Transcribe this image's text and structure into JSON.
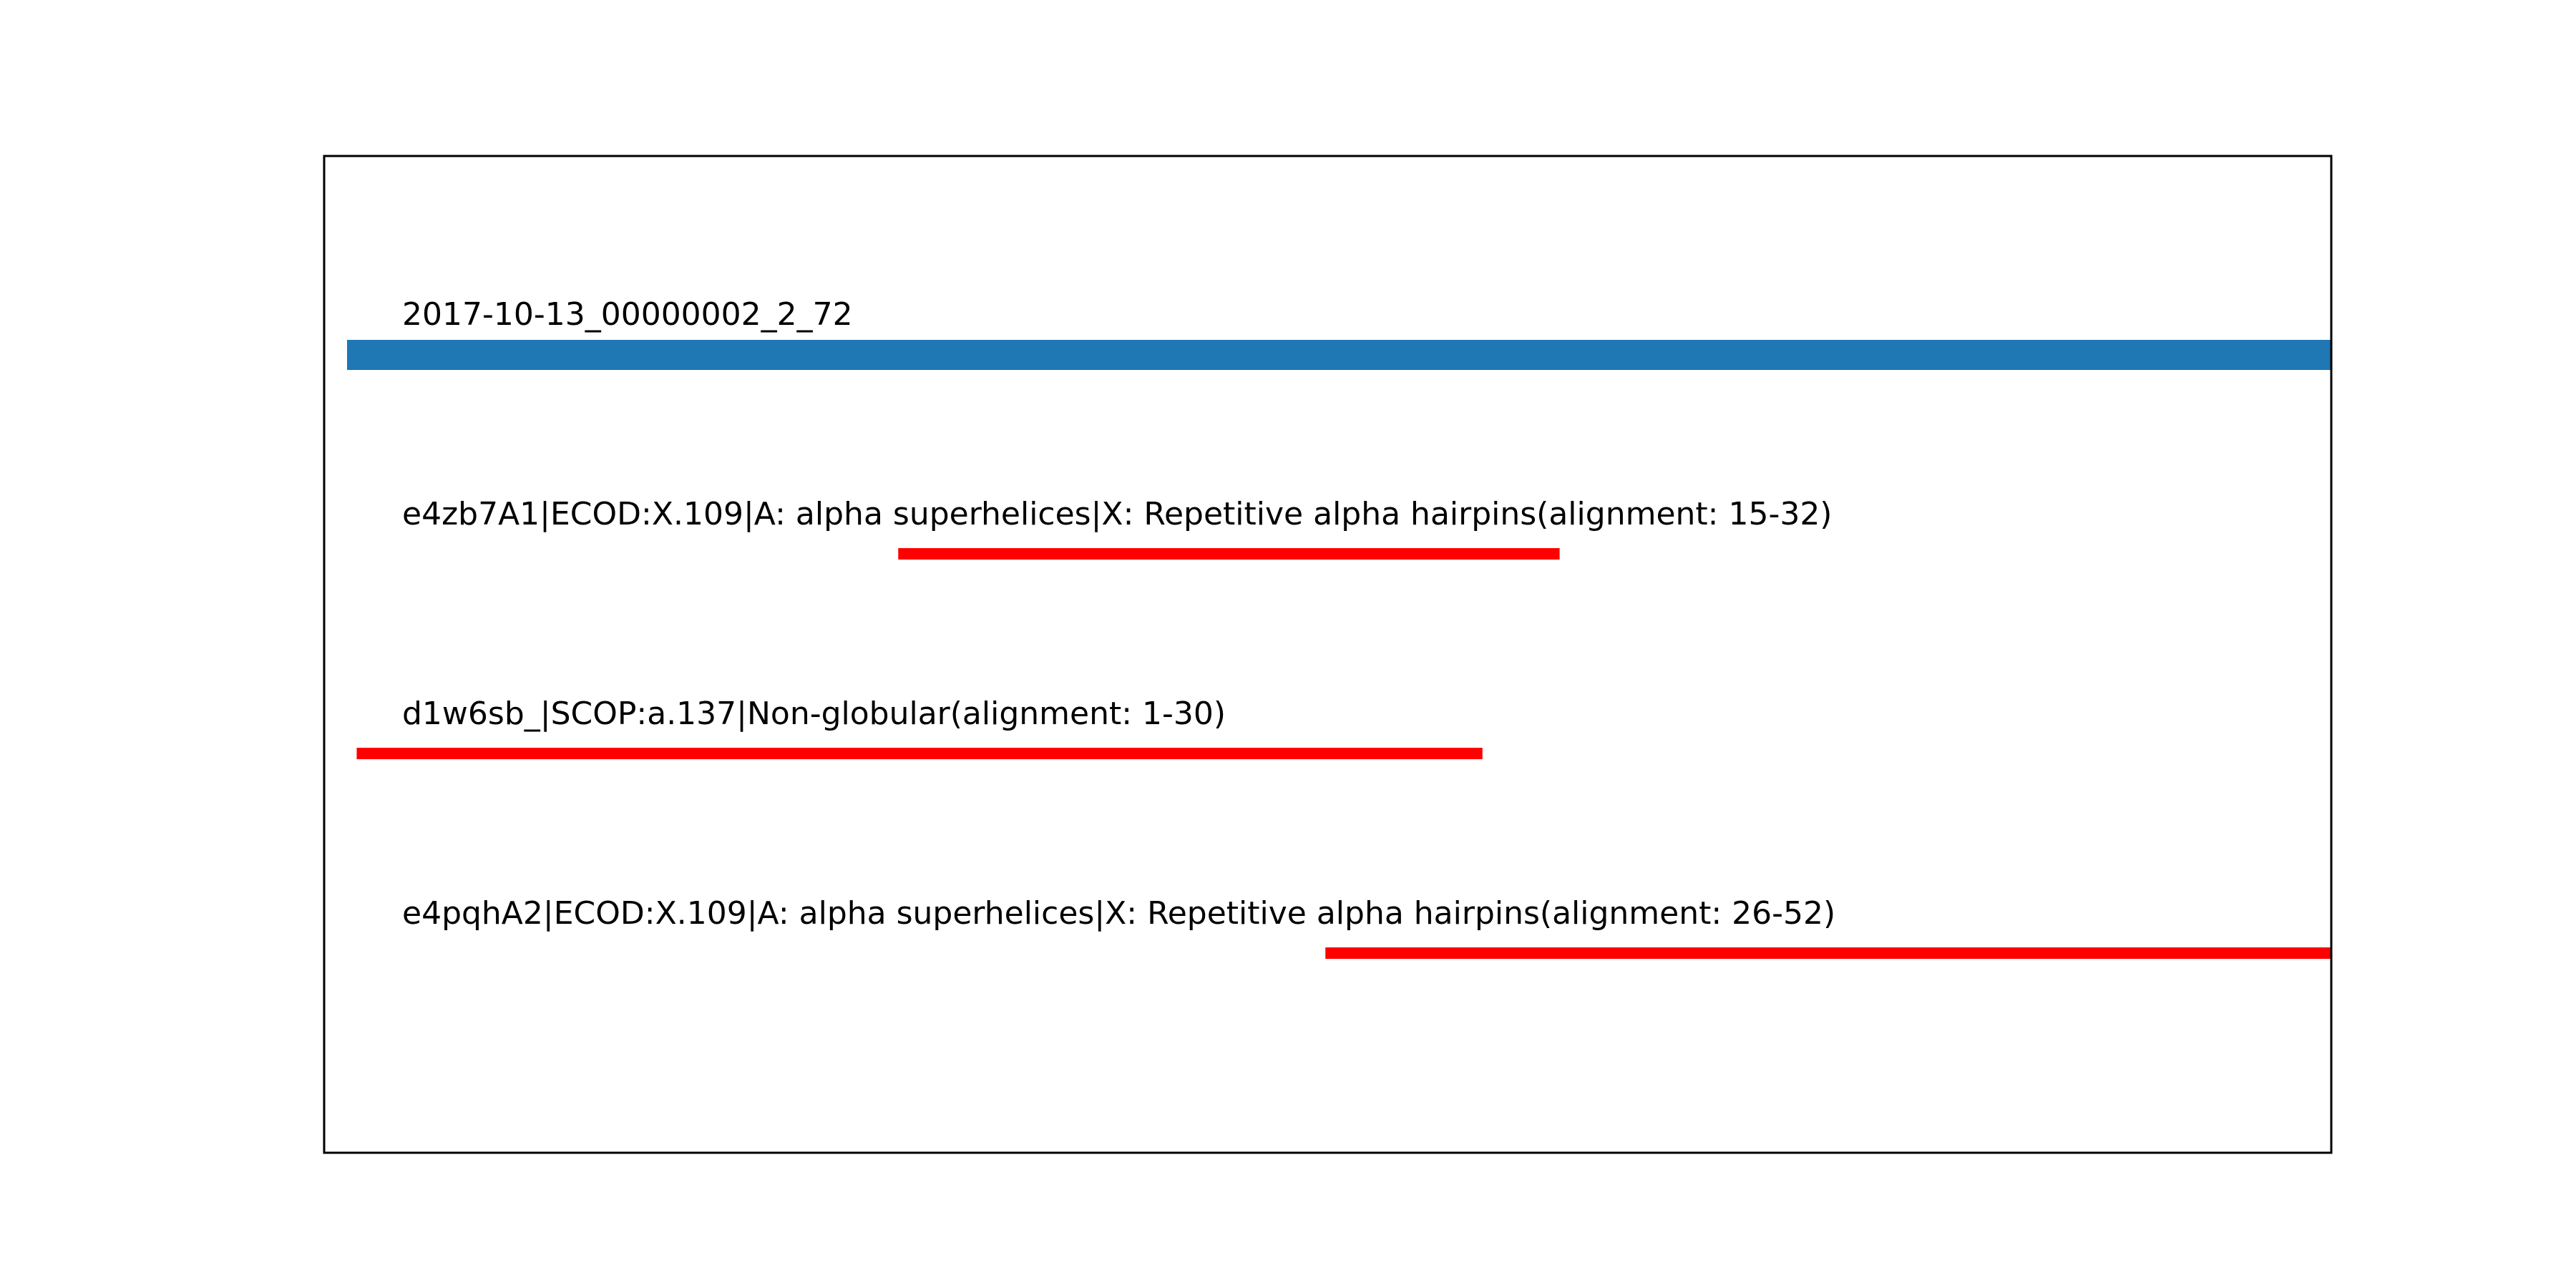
{
  "chart_data": {
    "type": "bar",
    "x_range": [
      0,
      72
    ],
    "grid": false,
    "axes_visible": false,
    "query": {
      "label": "2017-10-13_00000002_2_72",
      "start": 0,
      "end": 72,
      "color": "#1f77b4"
    },
    "hits": [
      {
        "label": "e4zb7A1|ECOD:X.109|A: alpha superhelices|X: Repetitive alpha hairpins(alignment: 15-32)",
        "start": 20,
        "end": 44,
        "color": "#ff0000"
      },
      {
        "label": "d1w6sb_|SCOP:a.137|Non-globular(alignment: 1-30)",
        "start": 0.35,
        "end": 41.2,
        "color": "#ff0000"
      },
      {
        "label": "e4pqhA2|ECOD:X.109|A: alpha superhelices|X: Repetitive alpha hairpins(alignment: 26-52)",
        "start": 35.5,
        "end": 72,
        "color": "#ff0000"
      }
    ]
  }
}
